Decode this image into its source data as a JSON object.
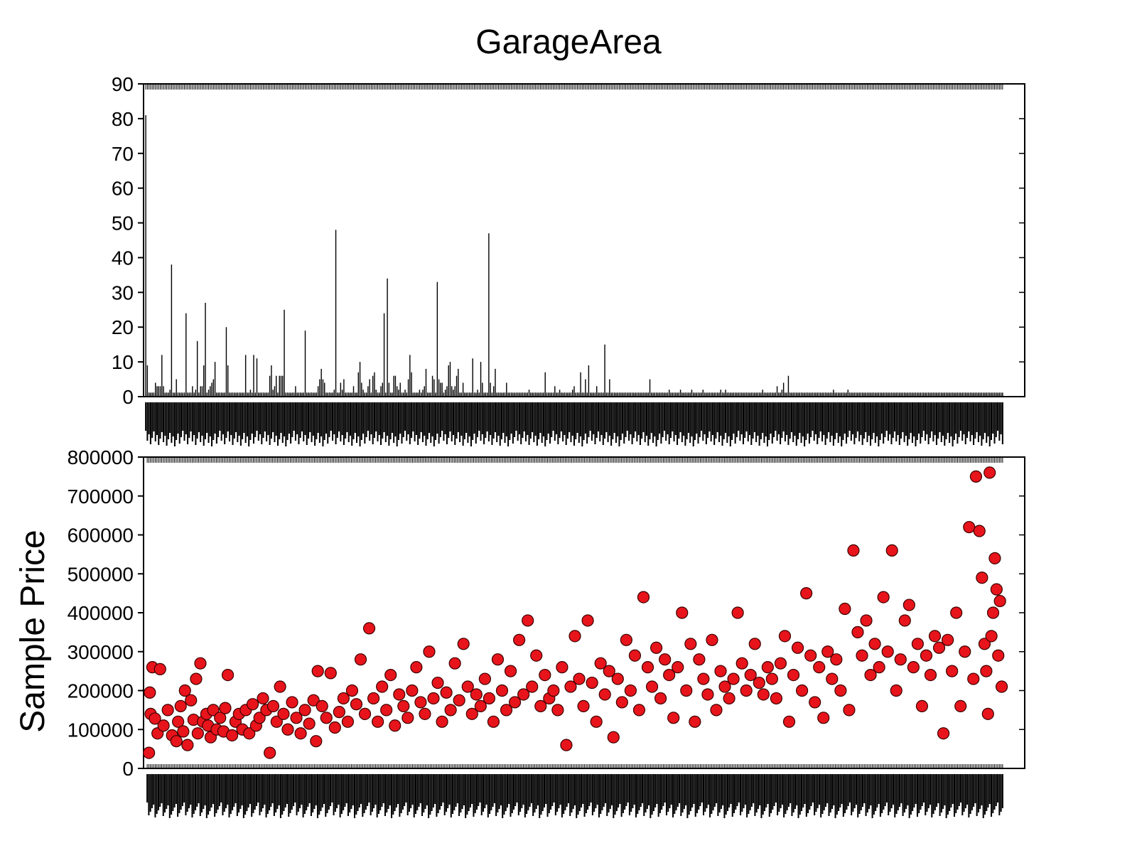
{
  "title": "GarageArea",
  "colors": {
    "bar": "#000000",
    "point_fill": "#e8141b",
    "point_edge": "#3a0000",
    "axis": "#000000"
  },
  "chart_data": [
    {
      "type": "bar",
      "title": "GarageArea",
      "xlabel": "",
      "ylabel": "",
      "ylim": [
        0,
        90
      ],
      "yticks": [
        0,
        10,
        20,
        30,
        40,
        50,
        60,
        70,
        80,
        90
      ],
      "x_tick_labels_legible": false,
      "values": [
        81,
        9,
        1,
        1,
        1,
        1,
        4,
        3,
        3,
        3,
        12,
        3,
        1,
        1,
        1,
        2,
        38,
        1,
        1,
        5,
        1,
        1,
        1,
        1,
        1,
        24,
        1,
        1,
        1,
        3,
        1,
        2,
        16,
        1,
        3,
        3,
        9,
        27,
        1,
        2,
        3,
        4,
        5,
        10,
        1,
        1,
        1,
        1,
        1,
        1,
        20,
        9,
        1,
        1,
        1,
        1,
        1,
        1,
        1,
        1,
        1,
        1,
        12,
        1,
        1,
        2,
        1,
        12,
        1,
        11,
        1,
        1,
        1,
        1,
        1,
        1,
        1,
        6,
        9,
        2,
        3,
        6,
        1,
        6,
        6,
        6,
        25,
        1,
        1,
        1,
        1,
        1,
        1,
        3,
        1,
        1,
        1,
        1,
        1,
        19,
        1,
        1,
        1,
        1,
        1,
        1,
        1,
        3,
        5,
        8,
        5,
        4,
        1,
        1,
        1,
        1,
        1,
        2,
        48,
        1,
        1,
        4,
        2,
        5,
        1,
        1,
        1,
        1,
        1,
        3,
        1,
        1,
        7,
        10,
        4,
        2,
        1,
        1,
        3,
        5,
        1,
        6,
        7,
        2,
        1,
        1,
        3,
        4,
        24,
        1,
        34,
        4,
        1,
        1,
        6,
        6,
        3,
        2,
        4,
        1,
        1,
        2,
        1,
        5,
        12,
        7,
        1,
        1,
        1,
        1,
        2,
        1,
        2,
        3,
        8,
        1,
        1,
        1,
        6,
        5,
        1,
        33,
        5,
        4,
        4,
        1,
        2,
        3,
        9,
        10,
        3,
        2,
        3,
        6,
        8,
        1,
        1,
        4,
        1,
        1,
        1,
        1,
        1,
        11,
        1,
        1,
        2,
        1,
        10,
        4,
        1,
        1,
        1,
        47,
        4,
        1,
        3,
        8,
        1,
        1,
        1,
        1,
        1,
        1,
        4,
        1,
        1,
        1,
        1,
        1,
        1,
        1,
        1,
        1,
        1,
        1,
        1,
        1,
        2,
        1,
        1,
        1,
        1,
        1,
        1,
        1,
        1,
        1,
        7,
        1,
        1,
        1,
        1,
        1,
        3,
        1,
        1,
        2,
        1,
        1,
        1,
        1,
        1,
        1,
        1,
        2,
        3,
        1,
        1,
        1,
        7,
        1,
        1,
        5,
        1,
        9,
        1,
        1,
        1,
        1,
        3,
        1,
        1,
        1,
        1,
        15,
        1,
        1,
        5,
        1,
        1,
        1,
        1,
        1,
        1,
        1,
        1,
        1,
        1,
        1,
        1,
        1,
        1,
        1,
        1,
        1,
        1,
        1,
        1,
        1,
        1,
        1,
        1,
        5,
        1,
        1,
        1,
        1,
        1,
        1,
        1,
        1,
        1,
        1,
        1,
        2,
        1,
        1,
        1,
        1,
        1,
        1,
        2,
        1,
        1,
        1,
        1,
        1,
        1,
        2,
        1,
        1,
        1,
        1,
        1,
        1,
        2,
        1,
        1,
        1,
        1,
        1,
        1,
        1,
        1,
        1,
        1,
        2,
        1,
        1,
        2,
        1,
        1,
        1,
        1,
        1,
        1,
        1,
        1,
        1,
        1,
        1,
        1,
        1,
        1,
        1,
        1,
        1,
        1,
        1,
        1,
        1,
        1,
        2,
        1,
        1,
        1,
        1,
        1,
        1,
        1,
        1,
        3,
        1,
        1,
        2,
        4,
        1,
        1,
        6,
        1,
        1,
        1,
        1,
        1,
        1,
        1,
        1,
        1,
        1,
        1,
        1,
        1,
        1,
        1,
        1,
        1,
        1,
        1,
        1,
        1,
        1,
        1,
        1,
        1,
        1,
        1,
        2,
        1,
        1,
        1,
        1,
        1,
        1,
        1,
        1,
        2,
        1,
        1,
        1,
        1,
        1,
        1,
        1,
        1,
        1,
        1,
        1,
        1,
        1,
        1,
        1,
        1,
        1,
        1,
        1,
        1,
        1,
        1,
        1,
        1,
        1,
        1,
        1,
        1,
        1,
        1,
        1,
        1,
        1,
        1,
        1,
        1,
        1,
        1,
        1,
        1,
        1,
        1,
        1,
        1,
        1,
        1,
        1,
        1,
        1,
        1,
        1,
        1,
        1,
        1,
        1,
        1,
        1,
        1,
        1,
        1,
        1,
        1,
        1,
        1,
        1,
        1,
        1,
        1,
        1,
        1,
        1,
        1,
        1,
        1,
        1,
        1,
        1,
        1,
        1,
        1,
        1,
        1,
        1,
        1,
        1,
        1,
        1,
        1,
        1,
        1,
        1,
        1,
        1,
        1,
        1,
        1
      ]
    },
    {
      "type": "scatter",
      "title": "",
      "xlabel": "",
      "ylabel": "Sample Price",
      "ylim": [
        0,
        800000
      ],
      "yticks": [
        0,
        100000,
        200000,
        300000,
        400000,
        500000,
        600000,
        700000,
        800000
      ],
      "x_tick_labels_legible": false,
      "x_range": [
        0,
        1
      ],
      "points": [
        [
          0.003,
          40000
        ],
        [
          0.004,
          195000
        ],
        [
          0.005,
          140000
        ],
        [
          0.007,
          260000
        ],
        [
          0.01,
          128000
        ],
        [
          0.013,
          90000
        ],
        [
          0.016,
          255000
        ],
        [
          0.02,
          110000
        ],
        [
          0.025,
          150000
        ],
        [
          0.03,
          85000
        ],
        [
          0.035,
          70000
        ],
        [
          0.037,
          120000
        ],
        [
          0.04,
          160000
        ],
        [
          0.043,
          95000
        ],
        [
          0.045,
          200000
        ],
        [
          0.048,
          60000
        ],
        [
          0.052,
          175000
        ],
        [
          0.055,
          125000
        ],
        [
          0.058,
          230000
        ],
        [
          0.06,
          90000
        ],
        [
          0.063,
          270000
        ],
        [
          0.066,
          120000
        ],
        [
          0.07,
          140000
        ],
        [
          0.072,
          110000
        ],
        [
          0.075,
          80000
        ],
        [
          0.078,
          150000
        ],
        [
          0.082,
          100000
        ],
        [
          0.086,
          130000
        ],
        [
          0.09,
          95000
        ],
        [
          0.092,
          155000
        ],
        [
          0.095,
          240000
        ],
        [
          0.1,
          85000
        ],
        [
          0.104,
          120000
        ],
        [
          0.108,
          140000
        ],
        [
          0.112,
          100000
        ],
        [
          0.116,
          150000
        ],
        [
          0.12,
          90000
        ],
        [
          0.124,
          165000
        ],
        [
          0.128,
          110000
        ],
        [
          0.132,
          130000
        ],
        [
          0.136,
          180000
        ],
        [
          0.14,
          150000
        ],
        [
          0.144,
          40000
        ],
        [
          0.148,
          160000
        ],
        [
          0.152,
          120000
        ],
        [
          0.156,
          210000
        ],
        [
          0.16,
          140000
        ],
        [
          0.165,
          100000
        ],
        [
          0.17,
          170000
        ],
        [
          0.175,
          130000
        ],
        [
          0.18,
          90000
        ],
        [
          0.185,
          150000
        ],
        [
          0.19,
          115000
        ],
        [
          0.195,
          175000
        ],
        [
          0.198,
          70000
        ],
        [
          0.2,
          250000
        ],
        [
          0.205,
          160000
        ],
        [
          0.21,
          130000
        ],
        [
          0.215,
          245000
        ],
        [
          0.22,
          105000
        ],
        [
          0.225,
          145000
        ],
        [
          0.23,
          180000
        ],
        [
          0.235,
          120000
        ],
        [
          0.24,
          200000
        ],
        [
          0.245,
          165000
        ],
        [
          0.25,
          280000
        ],
        [
          0.255,
          140000
        ],
        [
          0.26,
          360000
        ],
        [
          0.265,
          180000
        ],
        [
          0.27,
          120000
        ],
        [
          0.275,
          210000
        ],
        [
          0.28,
          150000
        ],
        [
          0.285,
          240000
        ],
        [
          0.29,
          110000
        ],
        [
          0.295,
          190000
        ],
        [
          0.3,
          160000
        ],
        [
          0.305,
          130000
        ],
        [
          0.31,
          200000
        ],
        [
          0.315,
          260000
        ],
        [
          0.32,
          170000
        ],
        [
          0.325,
          140000
        ],
        [
          0.33,
          300000
        ],
        [
          0.335,
          180000
        ],
        [
          0.34,
          220000
        ],
        [
          0.345,
          120000
        ],
        [
          0.35,
          195000
        ],
        [
          0.355,
          150000
        ],
        [
          0.36,
          270000
        ],
        [
          0.365,
          175000
        ],
        [
          0.37,
          320000
        ],
        [
          0.375,
          210000
        ],
        [
          0.38,
          140000
        ],
        [
          0.385,
          190000
        ],
        [
          0.39,
          160000
        ],
        [
          0.395,
          230000
        ],
        [
          0.4,
          180000
        ],
        [
          0.405,
          120000
        ],
        [
          0.41,
          280000
        ],
        [
          0.415,
          200000
        ],
        [
          0.42,
          150000
        ],
        [
          0.425,
          250000
        ],
        [
          0.43,
          170000
        ],
        [
          0.435,
          330000
        ],
        [
          0.44,
          190000
        ],
        [
          0.445,
          380000
        ],
        [
          0.45,
          210000
        ],
        [
          0.455,
          290000
        ],
        [
          0.46,
          160000
        ],
        [
          0.465,
          240000
        ],
        [
          0.47,
          180000
        ],
        [
          0.475,
          200000
        ],
        [
          0.48,
          150000
        ],
        [
          0.485,
          260000
        ],
        [
          0.49,
          60000
        ],
        [
          0.495,
          210000
        ],
        [
          0.5,
          340000
        ],
        [
          0.505,
          230000
        ],
        [
          0.51,
          160000
        ],
        [
          0.515,
          380000
        ],
        [
          0.52,
          220000
        ],
        [
          0.525,
          120000
        ],
        [
          0.53,
          270000
        ],
        [
          0.535,
          190000
        ],
        [
          0.54,
          250000
        ],
        [
          0.545,
          80000
        ],
        [
          0.55,
          230000
        ],
        [
          0.555,
          170000
        ],
        [
          0.56,
          330000
        ],
        [
          0.565,
          200000
        ],
        [
          0.57,
          290000
        ],
        [
          0.575,
          150000
        ],
        [
          0.58,
          440000
        ],
        [
          0.585,
          260000
        ],
        [
          0.59,
          210000
        ],
        [
          0.595,
          310000
        ],
        [
          0.6,
          180000
        ],
        [
          0.605,
          280000
        ],
        [
          0.61,
          240000
        ],
        [
          0.615,
          130000
        ],
        [
          0.62,
          260000
        ],
        [
          0.625,
          400000
        ],
        [
          0.63,
          200000
        ],
        [
          0.635,
          320000
        ],
        [
          0.64,
          120000
        ],
        [
          0.645,
          280000
        ],
        [
          0.65,
          230000
        ],
        [
          0.655,
          190000
        ],
        [
          0.66,
          330000
        ],
        [
          0.665,
          150000
        ],
        [
          0.67,
          250000
        ],
        [
          0.675,
          210000
        ],
        [
          0.68,
          180000
        ],
        [
          0.685,
          230000
        ],
        [
          0.69,
          400000
        ],
        [
          0.695,
          270000
        ],
        [
          0.7,
          200000
        ],
        [
          0.705,
          240000
        ],
        [
          0.71,
          320000
        ],
        [
          0.715,
          220000
        ],
        [
          0.72,
          190000
        ],
        [
          0.725,
          260000
        ],
        [
          0.73,
          230000
        ],
        [
          0.735,
          180000
        ],
        [
          0.74,
          270000
        ],
        [
          0.745,
          340000
        ],
        [
          0.75,
          120000
        ],
        [
          0.755,
          240000
        ],
        [
          0.76,
          310000
        ],
        [
          0.765,
          200000
        ],
        [
          0.77,
          450000
        ],
        [
          0.775,
          290000
        ],
        [
          0.78,
          170000
        ],
        [
          0.785,
          260000
        ],
        [
          0.79,
          130000
        ],
        [
          0.795,
          300000
        ],
        [
          0.8,
          230000
        ],
        [
          0.805,
          280000
        ],
        [
          0.81,
          200000
        ],
        [
          0.815,
          410000
        ],
        [
          0.82,
          150000
        ],
        [
          0.825,
          560000
        ],
        [
          0.83,
          350000
        ],
        [
          0.835,
          290000
        ],
        [
          0.84,
          380000
        ],
        [
          0.845,
          240000
        ],
        [
          0.85,
          320000
        ],
        [
          0.855,
          260000
        ],
        [
          0.86,
          440000
        ],
        [
          0.865,
          300000
        ],
        [
          0.87,
          560000
        ],
        [
          0.875,
          200000
        ],
        [
          0.88,
          280000
        ],
        [
          0.885,
          380000
        ],
        [
          0.89,
          420000
        ],
        [
          0.895,
          260000
        ],
        [
          0.9,
          320000
        ],
        [
          0.905,
          160000
        ],
        [
          0.91,
          290000
        ],
        [
          0.915,
          240000
        ],
        [
          0.92,
          340000
        ],
        [
          0.925,
          310000
        ],
        [
          0.93,
          90000
        ],
        [
          0.935,
          330000
        ],
        [
          0.94,
          250000
        ],
        [
          0.945,
          400000
        ],
        [
          0.95,
          160000
        ],
        [
          0.955,
          300000
        ],
        [
          0.96,
          620000
        ],
        [
          0.965,
          230000
        ],
        [
          0.968,
          750000
        ],
        [
          0.972,
          610000
        ],
        [
          0.975,
          490000
        ],
        [
          0.978,
          320000
        ],
        [
          0.98,
          250000
        ],
        [
          0.982,
          140000
        ],
        [
          0.984,
          760000
        ],
        [
          0.986,
          340000
        ],
        [
          0.988,
          400000
        ],
        [
          0.99,
          540000
        ],
        [
          0.992,
          460000
        ],
        [
          0.994,
          290000
        ],
        [
          0.996,
          430000
        ],
        [
          0.998,
          210000
        ]
      ],
      "x_tick_labels": []
    }
  ]
}
